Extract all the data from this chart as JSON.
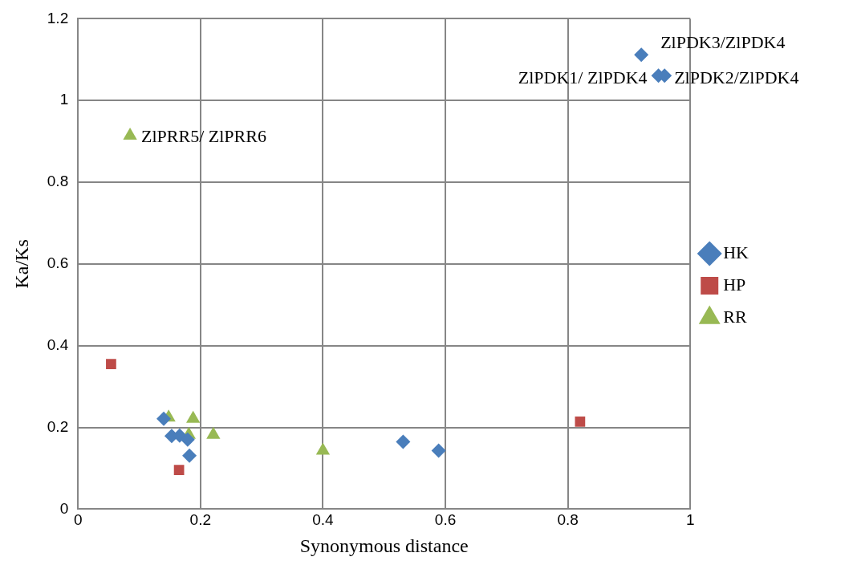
{
  "chart_data": {
    "type": "scatter",
    "xlabel": "Synonymous distance",
    "ylabel": "Ka/Ks",
    "xlim": [
      0,
      1
    ],
    "xticks": [
      0,
      0.2,
      0.4,
      0.6,
      0.8,
      1
    ],
    "ylim": [
      0,
      1.2
    ],
    "yticks": [
      0,
      0.2,
      0.4,
      0.6,
      0.8,
      1,
      1.2
    ],
    "grid": true,
    "legend": "right",
    "series": [
      {
        "name": "HK",
        "color": "#4a7ebb",
        "marker": "diamond",
        "x": [
          0.14,
          0.153,
          0.166,
          0.179,
          0.182,
          0.531,
          0.589,
          0.92,
          0.948,
          0.958
        ],
        "values": [
          0.221,
          0.179,
          0.18,
          0.17,
          0.131,
          0.165,
          0.143,
          1.112,
          1.061,
          1.061
        ]
      },
      {
        "name": "HP",
        "color": "#be4b48",
        "marker": "square",
        "x": [
          0.054,
          0.165,
          0.82
        ],
        "values": [
          0.355,
          0.096,
          0.214
        ]
      },
      {
        "name": "RR",
        "color": "#98b954",
        "marker": "triangle",
        "x": [
          0.148,
          0.188,
          0.181,
          0.221,
          0.4,
          0.085
        ],
        "values": [
          0.224,
          0.221,
          0.182,
          0.182,
          0.143,
          0.914
        ]
      }
    ],
    "annotations": [
      {
        "text": "ZlPRR5/ ZlPRR6",
        "x": 0.085,
        "y": 0.914
      },
      {
        "text": "ZlPDK3/ZlPDK4",
        "x": 0.92,
        "y": 1.112
      },
      {
        "text": "ZlPDK1/ ZlPDK4",
        "x": 0.948,
        "y": 1.061
      },
      {
        "text": "ZlPDK2/ZlPDK4",
        "x": 0.958,
        "y": 1.061
      }
    ]
  }
}
